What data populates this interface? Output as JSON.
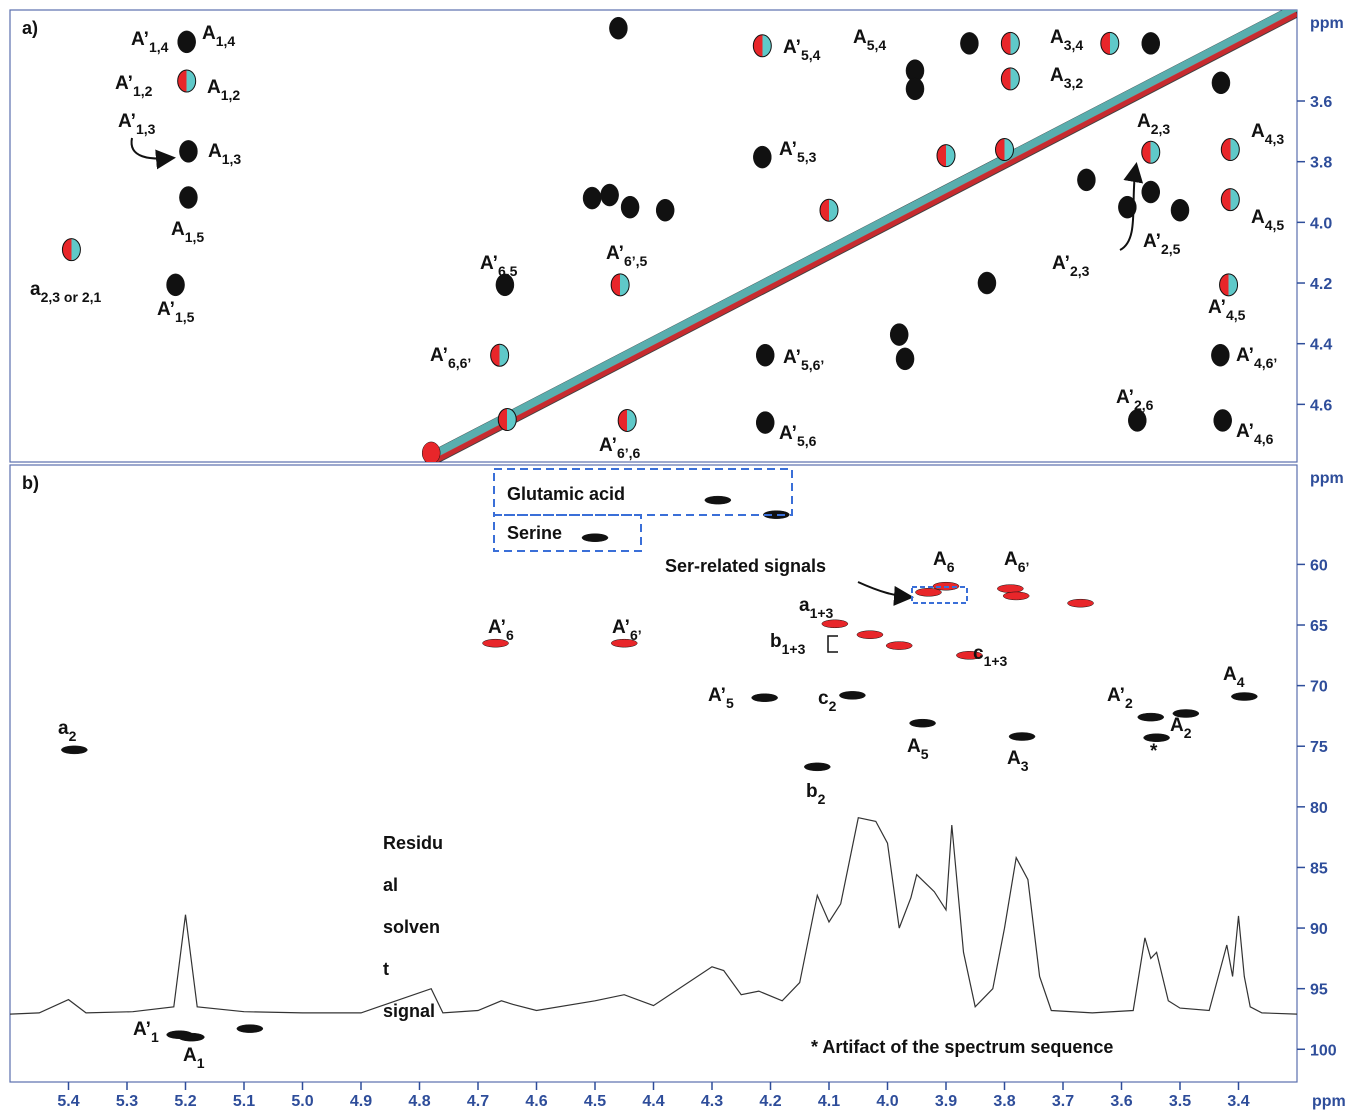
{
  "chart_data": [
    {
      "type": "contour",
      "panel_label": "a)",
      "y_label": "ppm",
      "xlim": [
        5.5,
        3.3
      ],
      "ylim": [
        3.3,
        4.79
      ],
      "yticks": [
        3.6,
        3.8,
        {
          "value": 4,
          "label": "4.0"
        },
        4.2,
        4.4,
        4.6
      ],
      "diagonal": true,
      "series": [
        {
          "color": "#111111",
          "x": [
            5.198,
            5.195,
            5.195,
            5.217,
            3.953,
            3.953,
            4.214,
            4.654,
            4.209,
            4.209,
            3.573,
            3.431,
            3.427,
            3.55,
            3.43,
            3.55,
            3.83,
            4.38,
            4.44,
            4.505,
            4.475,
            3.86,
            3.98,
            3.97,
            4.46,
            3.66,
            3.59,
            3.5
          ],
          "values": [
            3.405,
            3.766,
            3.918,
            4.206,
            3.5,
            3.56,
            3.785,
            4.206,
            4.438,
            4.66,
            4.653,
            4.438,
            4.653,
            3.41,
            3.54,
            3.9,
            4.2,
            3.96,
            3.95,
            3.92,
            3.91,
            3.41,
            4.37,
            4.45,
            3.36,
            3.86,
            3.95,
            3.96
          ]
        },
        {
          "colors": [
            "#e8262a",
            "#5fc9c9"
          ],
          "x": [
            5.198,
            5.395,
            4.214,
            3.79,
            3.79,
            3.55,
            3.414,
            3.414,
            3.8,
            3.62,
            4.457,
            4.663,
            4.445,
            3.417,
            4.65,
            3.9,
            4.1
          ],
          "values": [
            3.534,
            4.09,
            3.418,
            3.41,
            3.527,
            3.769,
            3.76,
            3.925,
            3.76,
            3.41,
            4.206,
            4.438,
            4.653,
            4.206,
            4.65,
            3.78,
            3.96
          ]
        },
        {
          "color": "#e8262a",
          "x": [
            4.78
          ],
          "values": [
            4.76
          ]
        }
      ],
      "labels": [
        {
          "text": "A’",
          "sub": "1,4"
        },
        {
          "text": "A",
          "sub": "1,4"
        },
        {
          "text": "A’",
          "sub": "1,2"
        },
        {
          "text": "A",
          "sub": "1,2"
        },
        {
          "text": "A’",
          "sub": "1,3"
        },
        {
          "text": "A",
          "sub": "1,3"
        },
        {
          "text": "A",
          "sub": "1,5"
        },
        {
          "text": "a",
          "sub": "2,3 or 2,1"
        },
        {
          "text": "A’",
          "sub": "1,5"
        },
        {
          "text": "A’",
          "sub": "5,4"
        },
        {
          "text": "A",
          "sub": "5,4"
        },
        {
          "text": "A",
          "sub": "3,4"
        },
        {
          "text": "A",
          "sub": "3,2"
        },
        {
          "text": "A",
          "sub": "2,3"
        },
        {
          "text": "A",
          "sub": "4,3"
        },
        {
          "text": "A",
          "sub": "4,5"
        },
        {
          "text": "A’",
          "sub": "5,3"
        },
        {
          "text": "A’",
          "sub": "2,5"
        },
        {
          "text": "A’",
          "sub": "2,3"
        },
        {
          "text": "A’",
          "sub": "6,5"
        },
        {
          "text": "A’",
          "sub": "6’,5"
        },
        {
          "text": "A’",
          "sub": "6,6’"
        },
        {
          "text": "A’",
          "sub": "5,6’"
        },
        {
          "text": "A’",
          "sub": "6’,6"
        },
        {
          "text": "A’",
          "sub": "5,6"
        },
        {
          "text": "A’",
          "sub": "2,6"
        },
        {
          "text": "A’",
          "sub": "4,5"
        },
        {
          "text": "A’",
          "sub": "4,6’"
        },
        {
          "text": "A’",
          "sub": "4,6"
        }
      ]
    },
    {
      "type": "contour",
      "panel_label": "b)",
      "y_label": "ppm",
      "x_label": "ppm",
      "xlim": [
        5.5,
        3.3
      ],
      "ylim": [
        51.8,
        102.7
      ],
      "xticks": [
        5.4,
        5.3,
        5.2,
        5.1,
        {
          "value": 5,
          "label": "5.0"
        },
        4.9,
        4.8,
        4.7,
        4.6,
        4.5,
        4.4,
        4.3,
        4.2,
        4.1,
        {
          "value": 4,
          "label": "4.0"
        },
        3.9,
        3.8,
        3.7,
        3.6,
        3.5,
        3.4
      ],
      "yticks": [
        60,
        65,
        70,
        75,
        80,
        85,
        90,
        95,
        100
      ],
      "series": [
        {
          "color": "#111111",
          "x": [
            5.39,
            5.21,
            5.19,
            5.09,
            4.29,
            4.19,
            4.5,
            4.21,
            4.06,
            4.12,
            3.94,
            3.77,
            3.55,
            3.49,
            3.54,
            3.39
          ],
          "values": [
            75.3,
            98.8,
            99.0,
            98.3,
            54.7,
            55.9,
            57.8,
            71.0,
            70.8,
            76.7,
            73.1,
            74.2,
            72.6,
            72.3,
            74.3,
            70.9
          ]
        },
        {
          "color": "#e8262a",
          "x": [
            4.67,
            4.45,
            4.09,
            4.03,
            3.98,
            3.86,
            3.9,
            3.93,
            3.79,
            3.78,
            3.67
          ],
          "values": [
            66.5,
            66.5,
            64.9,
            65.8,
            66.7,
            67.5,
            61.8,
            62.3,
            62.0,
            62.6,
            63.2
          ]
        }
      ],
      "projection": {
        "color": "#333333",
        "x": [
          5.5,
          5.45,
          5.4,
          5.37,
          5.29,
          5.22,
          5.2,
          5.18,
          5.1,
          5.0,
          4.9,
          4.78,
          4.76,
          4.7,
          4.66,
          4.64,
          4.6,
          4.5,
          4.45,
          4.4,
          4.3,
          4.28,
          4.25,
          4.22,
          4.18,
          4.15,
          4.12,
          4.1,
          4.08,
          4.05,
          4.02,
          4.0,
          3.98,
          3.96,
          3.95,
          3.92,
          3.9,
          3.89,
          3.87,
          3.85,
          3.82,
          3.8,
          3.78,
          3.76,
          3.74,
          3.72,
          3.65,
          3.58,
          3.56,
          3.55,
          3.54,
          3.52,
          3.5,
          3.45,
          3.42,
          3.41,
          3.4,
          3.39,
          3.38,
          3.36,
          3.3
        ],
        "values": [
          97.1,
          97.0,
          95.9,
          97.0,
          96.9,
          96.5,
          88.9,
          96.5,
          96.9,
          97.0,
          97.0,
          95.0,
          97.0,
          96.8,
          96.0,
          96.3,
          96.8,
          96.0,
          95.5,
          96.4,
          93.2,
          93.5,
          95.5,
          95.2,
          96.0,
          94.5,
          87.3,
          89.5,
          88.0,
          80.9,
          81.2,
          83.0,
          90.0,
          87.5,
          85.6,
          87.0,
          88.5,
          81.5,
          92.0,
          96.5,
          95.0,
          90.0,
          84.2,
          86.0,
          94.0,
          96.8,
          97.0,
          96.8,
          90.8,
          92.5,
          92.0,
          96.0,
          96.6,
          96.8,
          91.4,
          94.0,
          89.0,
          94.0,
          96.5,
          97.0,
          97.1
        ]
      },
      "labels": [
        {
          "text": "A’",
          "sub": "6"
        },
        {
          "text": "A’",
          "sub": "6’"
        },
        {
          "text": "A’",
          "sub": "5"
        },
        {
          "text": "c",
          "sub": "2"
        },
        {
          "text": "b",
          "sub": "2"
        },
        {
          "text": "a",
          "sub": "1+3"
        },
        {
          "text": "b",
          "sub": "1+3"
        },
        {
          "text": "c",
          "sub": "1+3"
        },
        {
          "text": "A",
          "sub": "6"
        },
        {
          "text": "A",
          "sub": "6’"
        },
        {
          "text": "A",
          "sub": "5"
        },
        {
          "text": "A",
          "sub": "3"
        },
        {
          "text": "A’",
          "sub": "2"
        },
        {
          "text": "A",
          "sub": "2"
        },
        {
          "text": "A",
          "sub": "4"
        },
        {
          "text": "a",
          "sub": "2"
        },
        {
          "text": "A’",
          "sub": "1"
        },
        {
          "text": "A",
          "sub": "1"
        },
        {
          "text": "*"
        }
      ],
      "annotations": {
        "glutamic": "Glutamic acid",
        "serine": "Serine",
        "ser_related": "Ser-related signals",
        "footnote": "* Artifact of the spectrum sequence",
        "solvent": [
          "Residu",
          "al",
          "solven",
          "t",
          "signal"
        ]
      }
    }
  ]
}
